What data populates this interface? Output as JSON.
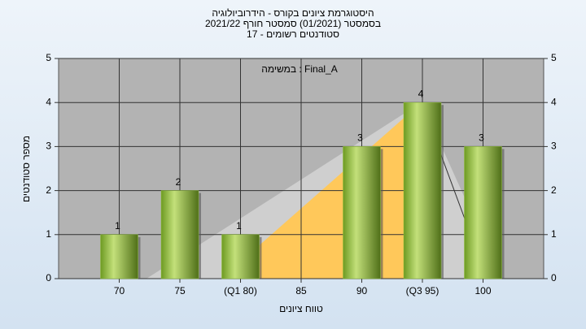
{
  "chart_data": {
    "type": "bar",
    "title": "היסטוגרמת ציונים בקורס - הידרוביולוגיה",
    "subtitle": "בסמסטר  (01/2021)  סמסטר חורף 2021/22",
    "subtitle2": "סטודנטים רשומים - 17",
    "annotation": "במשימה : Final_A",
    "x_label": "טווח ציונים",
    "y_label": "מספר סטודנטים",
    "categories": [
      "70",
      "75",
      "(Q1 80)",
      "85",
      "90",
      "(Q3 95)",
      "100"
    ],
    "values": [
      1,
      2,
      1,
      null,
      3,
      4,
      3
    ],
    "color": "#8fbf3a",
    "ylim": [
      0,
      5
    ],
    "yticks": [
      0,
      1,
      2,
      3,
      4,
      5
    ],
    "y2lim": [
      0,
      5
    ],
    "y2ticks": [
      0,
      1,
      2,
      3,
      4,
      5
    ],
    "grid": true
  }
}
